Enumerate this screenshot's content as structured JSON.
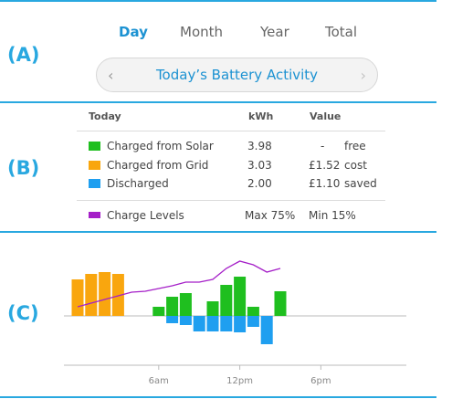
{
  "colors": {
    "accent": "#29a8e0",
    "solar": "#1fbf1f",
    "grid": "#f9a60e",
    "discharged": "#1f9ff0",
    "charge_levels": "#a51fc8"
  },
  "sections": {
    "a": "(A)",
    "b": "(B)",
    "c": "(C)"
  },
  "tabs": [
    {
      "label": "Day",
      "active": true
    },
    {
      "label": "Month",
      "active": false
    },
    {
      "label": "Year",
      "active": false
    },
    {
      "label": "Total",
      "active": false
    }
  ],
  "nav": {
    "title": "Today’s Battery Activity",
    "prev_icon": "chevron-left-icon",
    "next_icon": "chevron-right-icon"
  },
  "table": {
    "headers": {
      "name": "Today",
      "kwh": "kWh",
      "value": "Value"
    },
    "rows": [
      {
        "name": "Charged from Solar",
        "kwh": "3.98",
        "amount": "-",
        "note": "free"
      },
      {
        "name": "Charged from Grid",
        "kwh": "3.03",
        "amount": "£1.52",
        "note": "cost"
      },
      {
        "name": "Discharged",
        "kwh": "2.00",
        "amount": "£1.10",
        "note": "saved"
      }
    ],
    "charge_levels": {
      "name": "Charge Levels",
      "max": "Max 75%",
      "min": "Min 15%"
    }
  },
  "chart_data": {
    "type": "bar",
    "x_labels": [
      "6am",
      "12pm",
      "6pm"
    ],
    "x_label_hours": [
      6,
      12,
      18
    ],
    "x_range_hours": [
      0,
      25
    ],
    "charged_from_grid": {
      "hours": [
        0,
        1,
        2,
        3
      ],
      "values": [
        40,
        46,
        48,
        46
      ]
    },
    "charged_from_solar": {
      "hours": [
        6,
        7,
        8,
        10,
        11,
        12,
        13,
        15
      ],
      "values": [
        10,
        21,
        25,
        16,
        34,
        43,
        10,
        27
      ]
    },
    "discharged": {
      "hours": [
        7,
        8,
        9,
        10,
        11,
        12,
        13,
        14
      ],
      "values": [
        -8,
        -10,
        -17,
        -17,
        -17,
        -18,
        -12,
        -31
      ]
    },
    "charge_levels": {
      "hours": [
        0,
        1,
        2,
        3,
        4,
        5,
        6,
        7,
        8,
        9,
        10,
        11,
        12,
        13,
        14,
        15
      ],
      "values": [
        10,
        14,
        18,
        22,
        26,
        27,
        30,
        33,
        37,
        37,
        40,
        52,
        60,
        56,
        48,
        52
      ]
    }
  }
}
